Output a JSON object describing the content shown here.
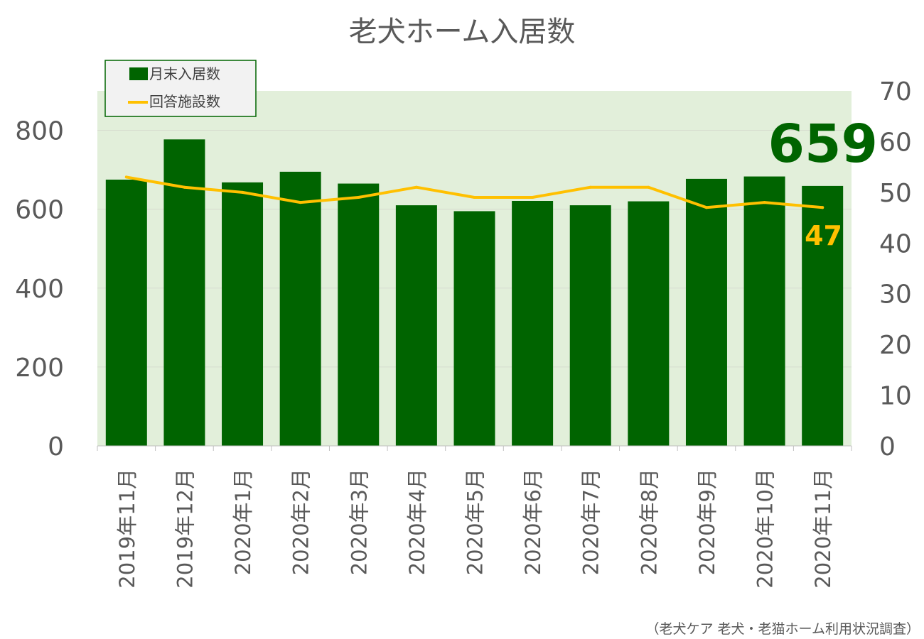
{
  "chart_data": {
    "type": "bar",
    "title": "老犬ホーム入居数",
    "categories": [
      "2019年11月",
      "2019年12月",
      "2020年1月",
      "2020年2月",
      "2020年3月",
      "2020年4月",
      "2020年5月",
      "2020年6月",
      "2020年7月",
      "2020年8月",
      "2020年9月",
      "2020年10月",
      "2020年11月"
    ],
    "series": [
      {
        "name": "月末入居数",
        "type": "bar",
        "axis": "left",
        "color": "#006400",
        "values": [
          675,
          777,
          668,
          695,
          665,
          610,
          595,
          621,
          610,
          620,
          677,
          683,
          659
        ]
      },
      {
        "name": "回答施設数",
        "type": "line",
        "axis": "right",
        "color": "#FFC000",
        "values": [
          53,
          51,
          50,
          48,
          49,
          51,
          49,
          49,
          51,
          51,
          47,
          48,
          47
        ]
      }
    ],
    "left_axis": {
      "ylim": [
        0,
        900
      ],
      "ticks": [
        0,
        200,
        400,
        600,
        800
      ]
    },
    "right_axis": {
      "ylim": [
        0,
        70
      ],
      "ticks": [
        0,
        10,
        20,
        30,
        40,
        50,
        60,
        70
      ]
    },
    "callouts": {
      "bar_last": "659",
      "line_last": "47"
    },
    "legend_position": "top-left",
    "grid": true,
    "source": "（老犬ケア 老犬・老猫ホーム利用状況調査）",
    "colors": {
      "plot_bg": "#E2EFDA",
      "bar": "#006400",
      "line": "#FFC000",
      "text": "#595959"
    }
  }
}
